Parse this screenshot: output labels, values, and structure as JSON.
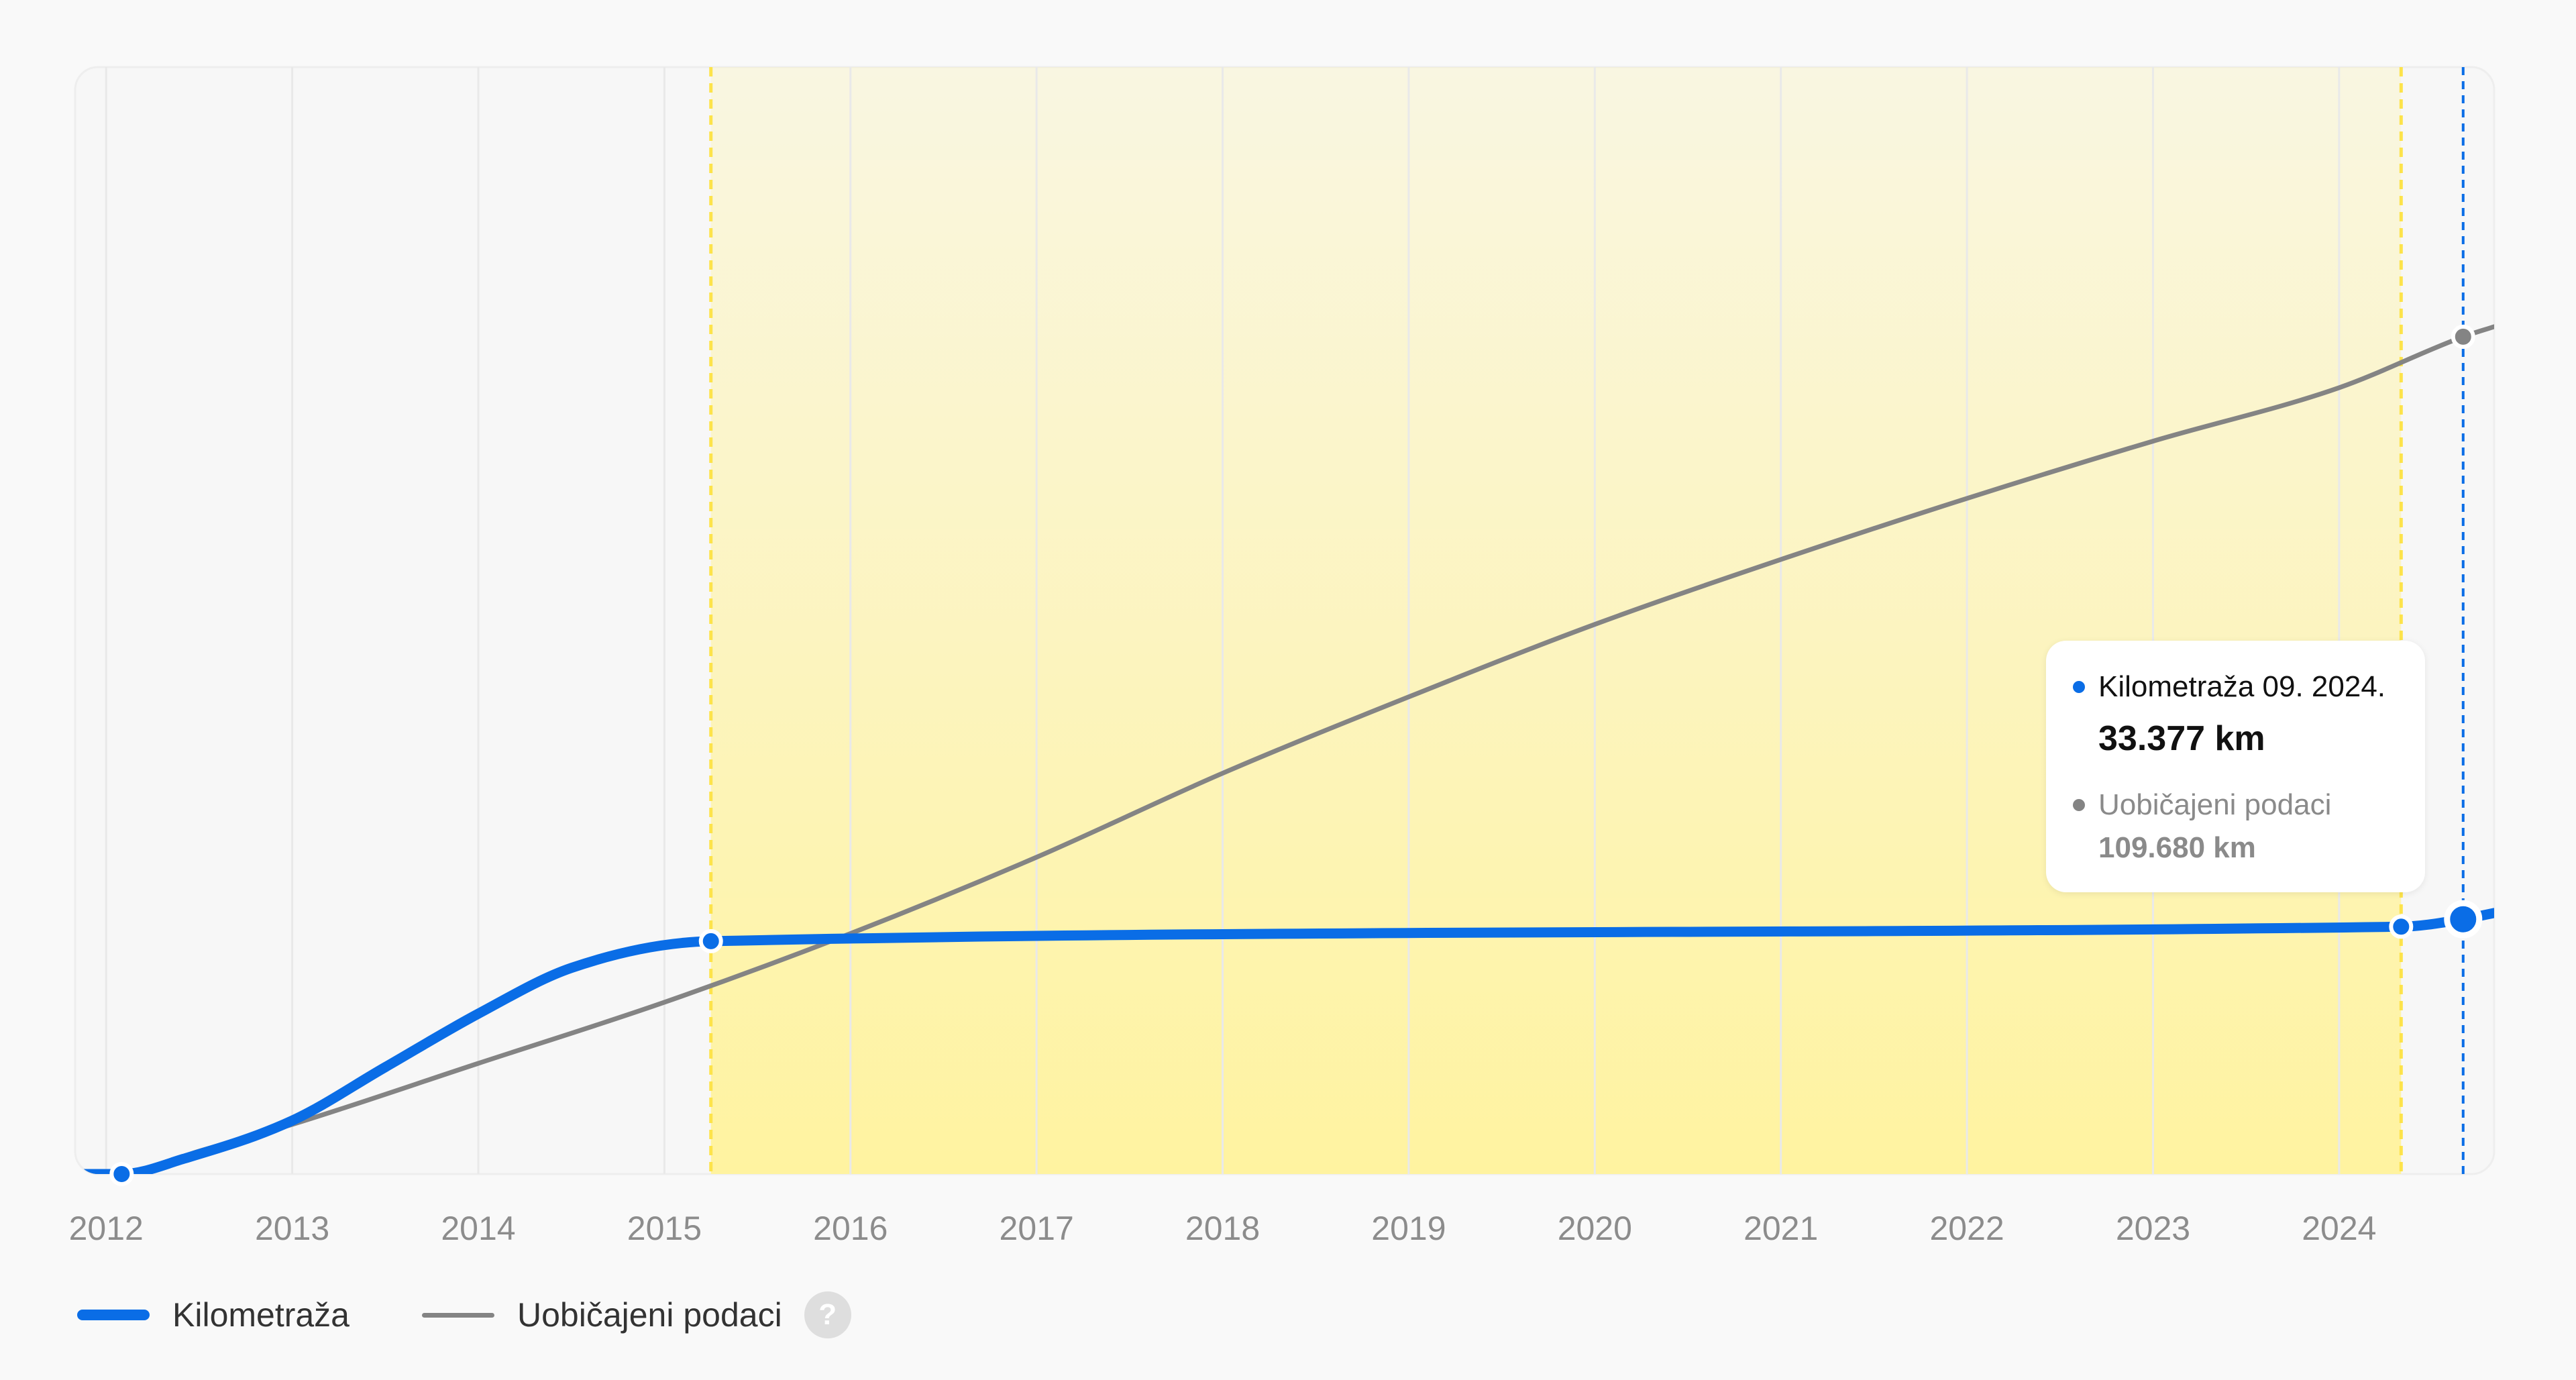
{
  "chart_data": {
    "type": "line",
    "x_ticks": [
      "2012",
      "2013",
      "2014",
      "2015",
      "2016",
      "2017",
      "2018",
      "2019",
      "2020",
      "2021",
      "2022",
      "2023",
      "2024"
    ],
    "series": [
      {
        "name": "Kilometraža",
        "color": "#0a6de6",
        "points": [
          {
            "x": "2011-11",
            "y": 0
          },
          {
            "x": "2012-02",
            "y": 0
          },
          {
            "x": "2012-06",
            "y": 2000
          },
          {
            "x": "2013-01",
            "y": 7000
          },
          {
            "x": "2013-07",
            "y": 14000
          },
          {
            "x": "2014-01",
            "y": 21000
          },
          {
            "x": "2014-07",
            "y": 27000
          },
          {
            "x": "2015-04",
            "y": 30500
          },
          {
            "x": "2024-05",
            "y": 32400
          },
          {
            "x": "2024-09",
            "y": 33377
          },
          {
            "x": "2024-11",
            "y": 34200
          }
        ],
        "markers": [
          {
            "x": "2012-02",
            "y": 0
          },
          {
            "x": "2015-04",
            "y": 30500
          },
          {
            "x": "2024-05",
            "y": 32400
          },
          {
            "x": "2024-09",
            "y": 33377,
            "active": true
          }
        ]
      },
      {
        "name": "Uobičajeni podaci",
        "color": "#848484",
        "points": [
          {
            "x": "2011-11",
            "y": 0
          },
          {
            "x": "2012-02",
            "y": 0
          },
          {
            "x": "2012-07",
            "y": 3000
          },
          {
            "x": "2013-01",
            "y": 6500
          },
          {
            "x": "2014-01",
            "y": 14500
          },
          {
            "x": "2015-01",
            "y": 22500
          },
          {
            "x": "2016-01",
            "y": 31500
          },
          {
            "x": "2017-01",
            "y": 41500
          },
          {
            "x": "2018-01",
            "y": 52500
          },
          {
            "x": "2019-01",
            "y": 62500
          },
          {
            "x": "2020-01",
            "y": 72000
          },
          {
            "x": "2021-01",
            "y": 80500
          },
          {
            "x": "2022-01",
            "y": 88500
          },
          {
            "x": "2023-01",
            "y": 96000
          },
          {
            "x": "2024-01",
            "y": 103000
          },
          {
            "x": "2024-09",
            "y": 109680
          },
          {
            "x": "2024-11",
            "y": 111000
          }
        ],
        "markers": [
          {
            "x": "2024-09",
            "y": 109680
          }
        ]
      }
    ],
    "highlight_range": {
      "from": "2015-04",
      "to": "2024-05",
      "color": "#fff3a0",
      "border_color": "#fde34a"
    },
    "cursor": {
      "x": "2024-09",
      "color": "#0a6de6"
    },
    "xlim": [
      "2011-11",
      "2024-11"
    ],
    "ylim": [
      0,
      145000
    ],
    "grid": "vertical",
    "legend_position": "bottom-left",
    "tooltip": {
      "primary_label": "Kilometraža 09. 2024.",
      "primary_value": "33.377 km",
      "secondary_label": "Uobičajeni podaci",
      "secondary_value": "109.680 km"
    }
  },
  "legend": {
    "items": [
      {
        "label": "Kilometraža",
        "color": "#0a6de6"
      },
      {
        "label": "Uobičajeni podaci",
        "color": "#848484"
      }
    ],
    "help_icon": "help-circle-icon",
    "help_glyph": "?"
  }
}
